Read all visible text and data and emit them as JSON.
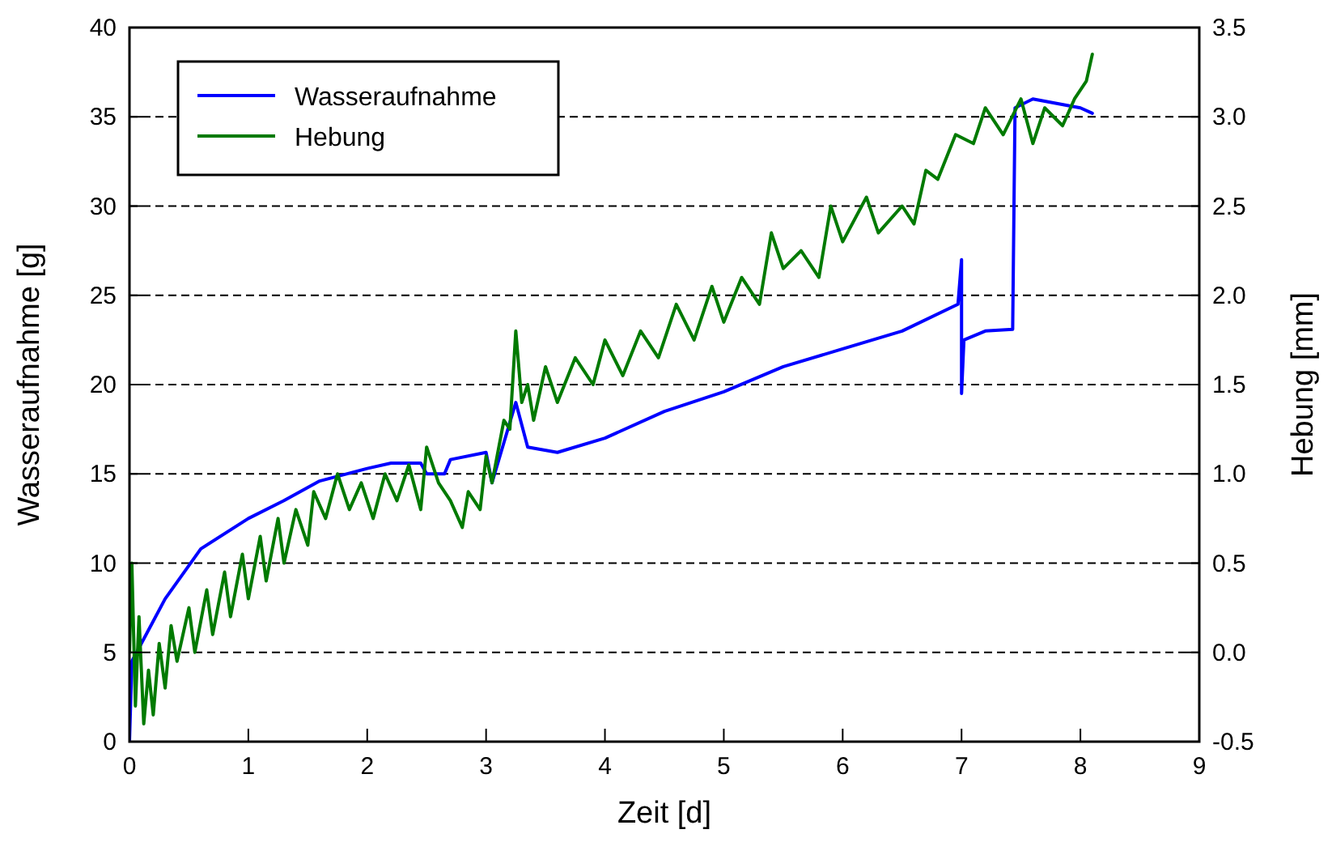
{
  "chart_data": {
    "type": "line",
    "xlabel": "Zeit [d]",
    "ylabel": "Wasseraufnahme [g]",
    "y2label": "Hebung [mm]",
    "xlim": [
      0,
      9
    ],
    "xticks": [
      0,
      1,
      2,
      3,
      4,
      5,
      6,
      7,
      8,
      9
    ],
    "ylim": [
      0,
      40
    ],
    "yticks": [
      0,
      5,
      10,
      15,
      20,
      25,
      30,
      35,
      40
    ],
    "y2lim": [
      -0.5,
      3.5
    ],
    "y2ticks": [
      -0.5,
      {
        "value": 0,
        "label": "0.0"
      },
      0.5,
      {
        "value": 1,
        "label": "1.0"
      },
      1.5,
      {
        "value": 2,
        "label": "2.0"
      },
      2.5,
      {
        "value": 3,
        "label": "3.0"
      },
      3.5
    ],
    "grid": "y",
    "legend": "top left",
    "line_style": "solid",
    "marker": "none",
    "series": [
      {
        "name": "Wasseraufnahme",
        "color": "#0000ff",
        "x": [
          0,
          0.02,
          0.1,
          0.3,
          0.6,
          1.0,
          1.3,
          1.6,
          2.0,
          2.2,
          2.45,
          2.5,
          2.65,
          2.7,
          3.0,
          3.05,
          3.25,
          3.35,
          3.6,
          4.0,
          4.5,
          5.0,
          5.5,
          6.0,
          6.5,
          6.97,
          7.0,
          7.0,
          7.02,
          7.2,
          7.43,
          7.45,
          7.6,
          8.0,
          8.1
        ],
        "values": [
          0,
          4.5,
          5.5,
          8,
          10.8,
          12.5,
          13.5,
          14.6,
          15.3,
          15.6,
          15.6,
          15.0,
          15.0,
          15.8,
          16.2,
          14.5,
          19.0,
          16.5,
          16.2,
          17.0,
          18.5,
          19.6,
          21.0,
          22.0,
          23.0,
          24.5,
          27.0,
          19.5,
          22.5,
          23.0,
          23.1,
          35.5,
          36.0,
          35.5,
          35.2
        ]
      },
      {
        "name": "Hebung",
        "color": "#007a00",
        "axis": "y2",
        "x": [
          0,
          0.02,
          0.05,
          0.08,
          0.12,
          0.16,
          0.2,
          0.25,
          0.3,
          0.35,
          0.4,
          0.5,
          0.55,
          0.65,
          0.7,
          0.8,
          0.85,
          0.95,
          1.0,
          1.1,
          1.15,
          1.25,
          1.3,
          1.4,
          1.5,
          1.55,
          1.65,
          1.75,
          1.85,
          1.95,
          2.05,
          2.15,
          2.25,
          2.35,
          2.45,
          2.5,
          2.6,
          2.7,
          2.8,
          2.85,
          2.95,
          3.0,
          3.05,
          3.15,
          3.2,
          3.25,
          3.3,
          3.35,
          3.4,
          3.5,
          3.6,
          3.75,
          3.9,
          4.0,
          4.15,
          4.3,
          4.45,
          4.6,
          4.75,
          4.9,
          5.0,
          5.15,
          5.3,
          5.4,
          5.5,
          5.65,
          5.8,
          5.9,
          6.0,
          6.2,
          6.3,
          6.5,
          6.6,
          6.7,
          6.8,
          6.95,
          7.1,
          7.2,
          7.35,
          7.5,
          7.6,
          7.7,
          7.85,
          7.95,
          8.05,
          8.1
        ],
        "values": [
          0.0,
          0.5,
          -0.3,
          0.2,
          -0.4,
          -0.1,
          -0.35,
          0.05,
          -0.2,
          0.15,
          -0.05,
          0.25,
          0.0,
          0.35,
          0.1,
          0.45,
          0.2,
          0.55,
          0.3,
          0.65,
          0.4,
          0.75,
          0.5,
          0.8,
          0.6,
          0.9,
          0.75,
          1.0,
          0.8,
          0.95,
          0.75,
          1.0,
          0.85,
          1.05,
          0.8,
          1.15,
          0.95,
          0.85,
          0.7,
          0.9,
          0.8,
          1.1,
          0.95,
          1.3,
          1.25,
          1.8,
          1.4,
          1.5,
          1.3,
          1.6,
          1.4,
          1.65,
          1.5,
          1.75,
          1.55,
          1.8,
          1.65,
          1.95,
          1.75,
          2.05,
          1.85,
          2.1,
          1.95,
          2.35,
          2.15,
          2.25,
          2.1,
          2.5,
          2.3,
          2.55,
          2.35,
          2.5,
          2.4,
          2.7,
          2.65,
          2.9,
          2.85,
          3.05,
          2.9,
          3.1,
          2.85,
          3.05,
          2.95,
          3.1,
          3.2,
          3.35
        ]
      }
    ]
  }
}
